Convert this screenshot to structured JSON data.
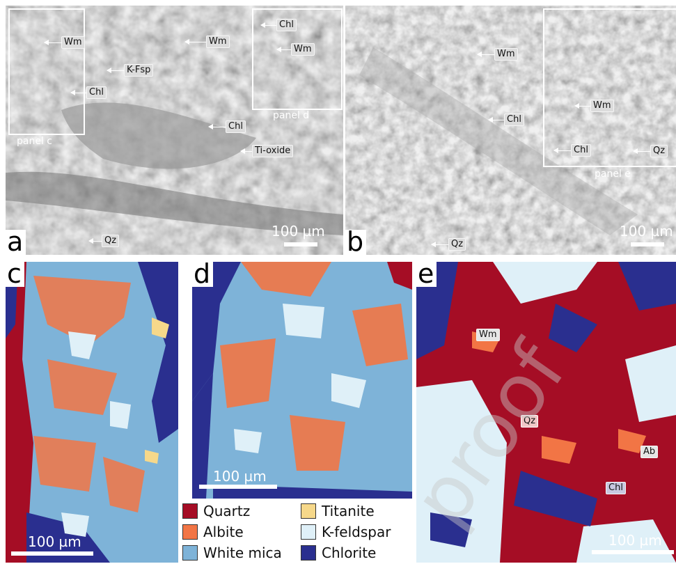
{
  "panels": {
    "a": {
      "letter": "a",
      "labels": {
        "wm1": "Wm",
        "chl1": "Chl",
        "kfsp": "K-Fsp",
        "wm2": "Wm",
        "chl2": "Chl",
        "wm3": "Wm",
        "chl3": "Chl",
        "tiox": "Ti-oxide",
        "qz": "Qz"
      },
      "box_c": "panel c",
      "box_d": "panel d",
      "scale": "100 µm"
    },
    "b": {
      "letter": "b",
      "labels": {
        "wm1": "Wm",
        "chl1": "Chl",
        "wm2": "Wm",
        "chl2": "Chl",
        "qz1": "Qz",
        "qz2": "Qz"
      },
      "box_e": "panel e",
      "scale": "100 µm"
    },
    "c": {
      "letter": "c",
      "scale": "100 µm"
    },
    "d": {
      "letter": "d",
      "scale": "100 µm"
    },
    "e": {
      "letter": "e",
      "labels": {
        "wm": "Wm",
        "qz": "Qz",
        "ab": "Ab",
        "chl": "Chl"
      },
      "scale": "100 µm"
    }
  },
  "legend": {
    "quartz": "Quartz",
    "albite": "Albite",
    "white_mica": "White mica",
    "titanite": "Titanite",
    "kfeldspar": "K-feldspar",
    "chlorite": "Chlorite"
  },
  "colors": {
    "quartz": "#a50d25",
    "albite": "#f27545",
    "white_mica": "#7eb3d8",
    "titanite": "#f6d88a",
    "kfeldspar": "#dff0f8",
    "chlorite": "#2a2f8f"
  },
  "watermark": "proof"
}
